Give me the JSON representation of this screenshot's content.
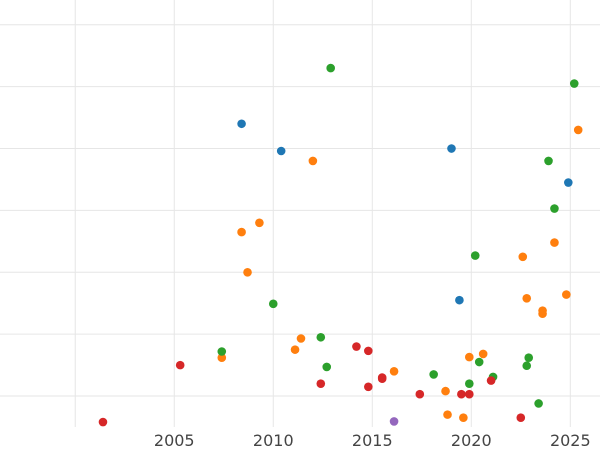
{
  "chart_data": {
    "type": "scatter",
    "title": "",
    "xlabel": "",
    "ylabel": "",
    "xlim": [
      1996.2,
      2026.5
    ],
    "ylim": [
      -0.5,
      6.4
    ],
    "x_ticks": [
      2005,
      2010,
      2015,
      2020,
      2025
    ],
    "x_tick_labels": [
      "2005",
      "2010",
      "2015",
      "2020",
      "2025"
    ],
    "y_gridlines": [
      0,
      1,
      2,
      3,
      4,
      5,
      6
    ],
    "y_tick_labels_visible": false,
    "grid": true,
    "legend": "none",
    "series": [
      {
        "color": "#1f77b4",
        "points": [
          {
            "x": 2008.4,
            "y": 4.4
          },
          {
            "x": 2010.4,
            "y": 3.96
          },
          {
            "x": 2019.0,
            "y": 4.0
          },
          {
            "x": 2024.9,
            "y": 3.45
          },
          {
            "x": 2019.4,
            "y": 1.55
          }
        ]
      },
      {
        "color": "#ff7f0e",
        "points": [
          {
            "x": 2007.4,
            "y": 0.62
          },
          {
            "x": 2008.4,
            "y": 2.65
          },
          {
            "x": 2008.7,
            "y": 2.0
          },
          {
            "x": 2009.3,
            "y": 2.8
          },
          {
            "x": 2011.1,
            "y": 0.75
          },
          {
            "x": 2011.4,
            "y": 0.93
          },
          {
            "x": 2012.0,
            "y": 3.8
          },
          {
            "x": 2016.1,
            "y": 0.4
          },
          {
            "x": 2018.7,
            "y": 0.08
          },
          {
            "x": 2018.8,
            "y": -0.3
          },
          {
            "x": 2019.6,
            "y": -0.35
          },
          {
            "x": 2019.9,
            "y": 0.63
          },
          {
            "x": 2020.6,
            "y": 0.68
          },
          {
            "x": 2022.6,
            "y": 2.25
          },
          {
            "x": 2022.8,
            "y": 1.58
          },
          {
            "x": 2023.6,
            "y": 1.33
          },
          {
            "x": 2023.6,
            "y": 1.38
          },
          {
            "x": 2024.2,
            "y": 2.48
          },
          {
            "x": 2024.8,
            "y": 1.64
          },
          {
            "x": 2025.4,
            "y": 4.3
          }
        ]
      },
      {
        "color": "#2ca02c",
        "points": [
          {
            "x": 2007.4,
            "y": 0.72
          },
          {
            "x": 2010.0,
            "y": 1.49
          },
          {
            "x": 2012.4,
            "y": 0.95
          },
          {
            "x": 2012.7,
            "y": 0.47
          },
          {
            "x": 2012.9,
            "y": 5.3
          },
          {
            "x": 2018.1,
            "y": 0.35
          },
          {
            "x": 2019.9,
            "y": 0.2
          },
          {
            "x": 2020.2,
            "y": 2.27
          },
          {
            "x": 2020.4,
            "y": 0.55
          },
          {
            "x": 2021.1,
            "y": 0.31
          },
          {
            "x": 2022.8,
            "y": 0.49
          },
          {
            "x": 2022.9,
            "y": 0.62
          },
          {
            "x": 2023.4,
            "y": -0.12
          },
          {
            "x": 2023.9,
            "y": 3.8
          },
          {
            "x": 2024.2,
            "y": 3.03
          },
          {
            "x": 2025.2,
            "y": 5.05
          }
        ]
      },
      {
        "color": "#d62728",
        "points": [
          {
            "x": 2001.4,
            "y": -0.42
          },
          {
            "x": 2005.3,
            "y": 0.5
          },
          {
            "x": 2012.4,
            "y": 0.2
          },
          {
            "x": 2014.2,
            "y": 0.8
          },
          {
            "x": 2014.8,
            "y": 0.15
          },
          {
            "x": 2014.8,
            "y": 0.73
          },
          {
            "x": 2015.5,
            "y": 0.3
          },
          {
            "x": 2015.5,
            "y": 0.28
          },
          {
            "x": 2017.4,
            "y": 0.03
          },
          {
            "x": 2019.5,
            "y": 0.03
          },
          {
            "x": 2019.9,
            "y": 0.03
          },
          {
            "x": 2021.0,
            "y": 0.25
          },
          {
            "x": 2022.5,
            "y": -0.35
          }
        ]
      },
      {
        "color": "#9467bd",
        "points": [
          {
            "x": 2016.1,
            "y": -0.41
          }
        ]
      }
    ]
  }
}
